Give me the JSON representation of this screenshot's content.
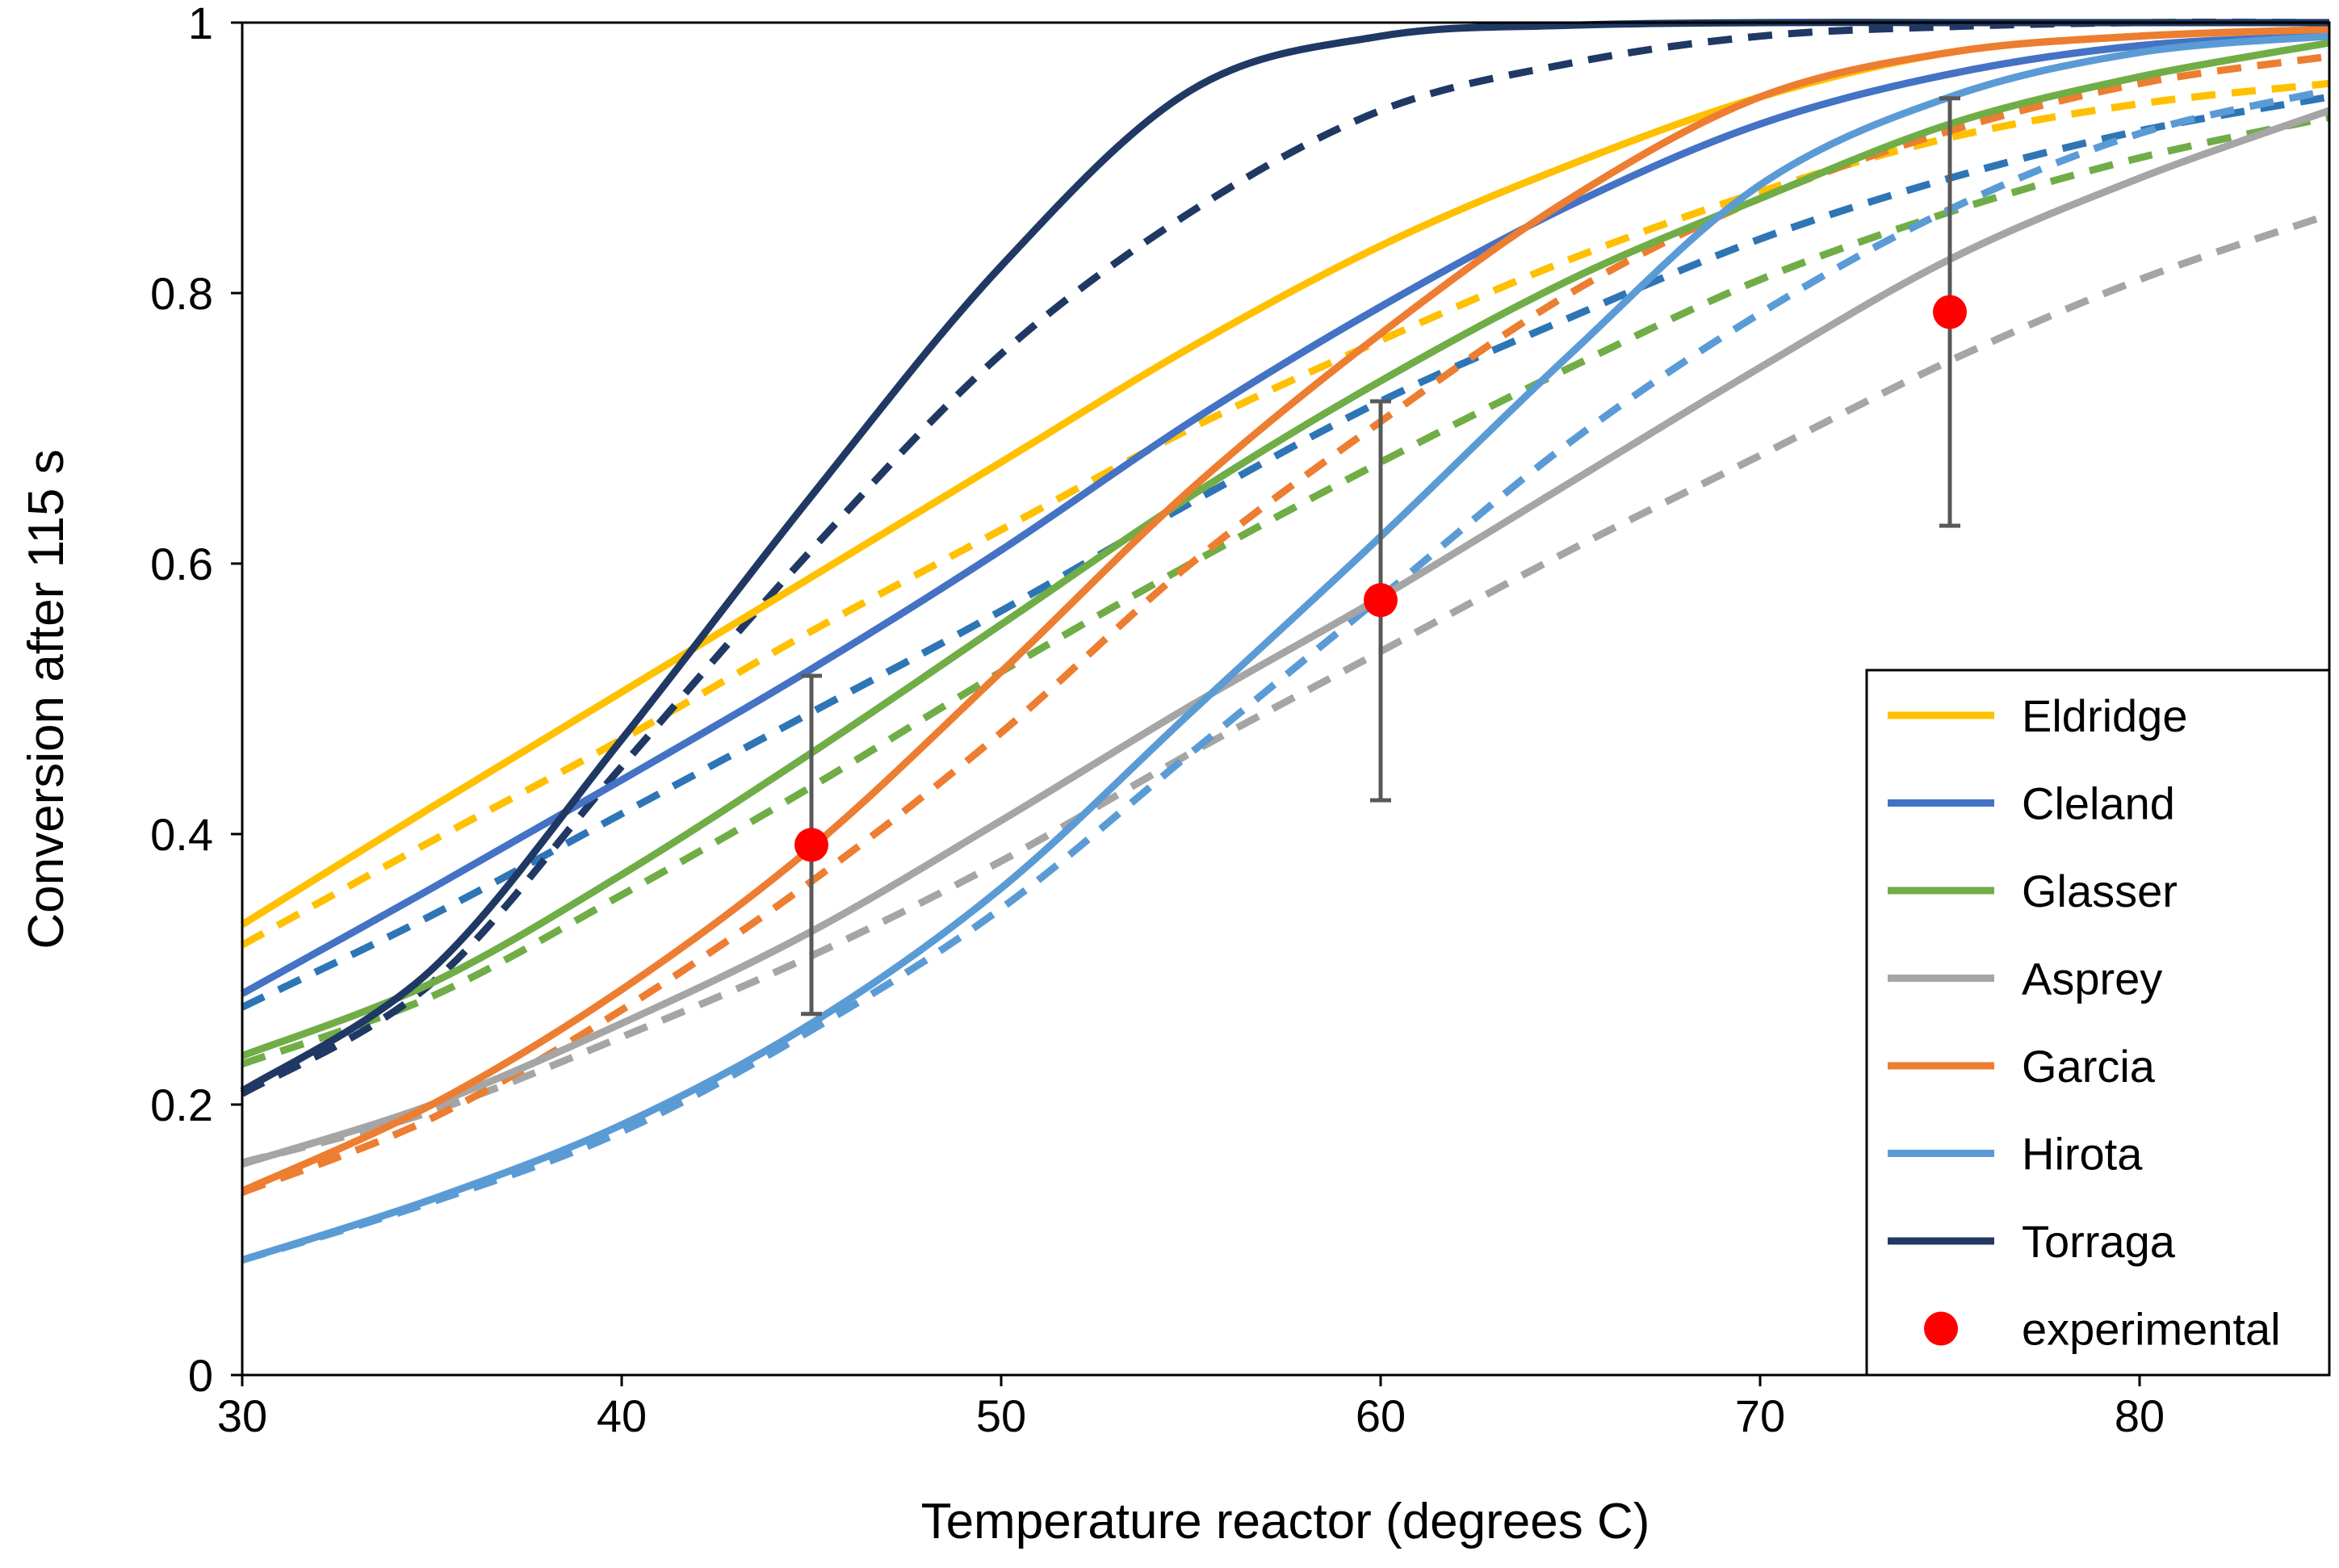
{
  "chart_data": {
    "type": "line",
    "title": "",
    "xlabel": "Temperature reactor (degrees C)",
    "ylabel": "Conversion after 115 s",
    "xlim": [
      30,
      85
    ],
    "ylim": [
      0,
      1
    ],
    "xticks": [
      30,
      40,
      50,
      60,
      70,
      80
    ],
    "yticks": [
      0,
      0.2,
      0.4,
      0.6,
      0.8,
      1
    ],
    "ytick_labels": [
      "0",
      "0.2",
      "0.4",
      "0.6",
      "0.8",
      "1"
    ],
    "grid": false,
    "legend_position": "bottom-right",
    "x": [
      30,
      35,
      40,
      45,
      50,
      55,
      60,
      65,
      70,
      75,
      80,
      85
    ],
    "series": [
      {
        "name": "Eldridge",
        "color": "#FFC000",
        "style": "solid",
        "values": [
          0.333,
          0.42,
          0.505,
          0.59,
          0.675,
          0.76,
          0.835,
          0.895,
          0.945,
          0.978,
          0.99,
          0.995
        ]
      },
      {
        "name": "Cleland",
        "color": "#4472C4",
        "style": "solid",
        "values": [
          0.282,
          0.36,
          0.44,
          0.522,
          0.61,
          0.705,
          0.79,
          0.865,
          0.925,
          0.962,
          0.983,
          0.99
        ]
      },
      {
        "name": "Glasser",
        "color": "#70AD47",
        "style": "solid",
        "values": [
          0.236,
          0.29,
          0.37,
          0.46,
          0.555,
          0.65,
          0.735,
          0.81,
          0.87,
          0.925,
          0.96,
          0.985
        ]
      },
      {
        "name": "Asprey",
        "color": "#A5A5A5",
        "style": "solid",
        "values": [
          0.156,
          0.2,
          0.26,
          0.328,
          0.41,
          0.495,
          0.575,
          0.66,
          0.745,
          0.825,
          0.885,
          0.935
        ]
      },
      {
        "name": "Garcia",
        "color": "#ED7D31",
        "style": "solid",
        "values": [
          0.136,
          0.2,
          0.285,
          0.39,
          0.52,
          0.655,
          0.77,
          0.87,
          0.945,
          0.978,
          0.99,
          0.995
        ]
      },
      {
        "name": "Hirota",
        "color": "#5B9BD5",
        "style": "solid",
        "values": [
          0.085,
          0.13,
          0.185,
          0.26,
          0.36,
          0.49,
          0.62,
          0.755,
          0.88,
          0.945,
          0.978,
          0.99
        ]
      },
      {
        "name": "Torraga",
        "color": "#203864",
        "style": "solid",
        "values": [
          0.21,
          0.3,
          0.47,
          0.65,
          0.82,
          0.95,
          0.99,
          0.998,
          1.0,
          1.0,
          1.0,
          1.0
        ]
      },
      {
        "name": "Eldridge (dashed)",
        "color": "#FFC000",
        "style": "dashed",
        "values": [
          0.318,
          0.395,
          0.47,
          0.55,
          0.625,
          0.7,
          0.765,
          0.825,
          0.875,
          0.915,
          0.94,
          0.955
        ]
      },
      {
        "name": "Cleland (dashed)",
        "color": "#2E75B6",
        "style": "dashed",
        "values": [
          0.272,
          0.34,
          0.415,
          0.49,
          0.565,
          0.645,
          0.72,
          0.782,
          0.84,
          0.885,
          0.92,
          0.945
        ]
      },
      {
        "name": "Glasser (dashed)",
        "color": "#70AD47",
        "style": "dashed",
        "values": [
          0.23,
          0.28,
          0.355,
          0.435,
          0.52,
          0.6,
          0.675,
          0.745,
          0.81,
          0.86,
          0.9,
          0.93
        ]
      },
      {
        "name": "Asprey (dashed)",
        "color": "#A5A5A5",
        "style": "dashed",
        "values": [
          0.157,
          0.195,
          0.25,
          0.31,
          0.38,
          0.46,
          0.535,
          0.61,
          0.68,
          0.75,
          0.81,
          0.858
        ]
      },
      {
        "name": "Garcia (dashed)",
        "color": "#ED7D31",
        "style": "dashed",
        "values": [
          0.135,
          0.19,
          0.27,
          0.365,
          0.475,
          0.6,
          0.705,
          0.8,
          0.87,
          0.92,
          0.955,
          0.975
        ]
      },
      {
        "name": "Hirota (dashed)",
        "color": "#5B9BD5",
        "style": "dashed",
        "values": [
          0.085,
          0.128,
          0.18,
          0.255,
          0.345,
          0.46,
          0.575,
          0.69,
          0.785,
          0.862,
          0.918,
          0.95
        ]
      },
      {
        "name": "Torraga (dashed)",
        "color": "#203864",
        "style": "dashed",
        "values": [
          0.208,
          0.29,
          0.45,
          0.61,
          0.755,
          0.86,
          0.935,
          0.97,
          0.99,
          0.997,
          1.0,
          1.0
        ]
      }
    ],
    "experimental": {
      "name": "experimental",
      "color": "#FF0000",
      "x": [
        45,
        60,
        75
      ],
      "y": [
        0.392,
        0.573,
        0.786
      ],
      "err_low": [
        0.267,
        0.425,
        0.628
      ],
      "err_high": [
        0.517,
        0.72,
        0.944
      ],
      "errorbar_color": "#595959"
    },
    "legend": [
      {
        "label": "Eldridge",
        "color": "#FFC000",
        "kind": "line"
      },
      {
        "label": "Cleland",
        "color": "#4472C4",
        "kind": "line"
      },
      {
        "label": "Glasser",
        "color": "#70AD47",
        "kind": "line"
      },
      {
        "label": "Asprey",
        "color": "#A5A5A5",
        "kind": "line"
      },
      {
        "label": "Garcia",
        "color": "#ED7D31",
        "kind": "line"
      },
      {
        "label": "Hirota",
        "color": "#5B9BD5",
        "kind": "line"
      },
      {
        "label": "Torraga",
        "color": "#203864",
        "kind": "line"
      },
      {
        "label": "experimental",
        "color": "#FF0000",
        "kind": "marker"
      }
    ]
  }
}
